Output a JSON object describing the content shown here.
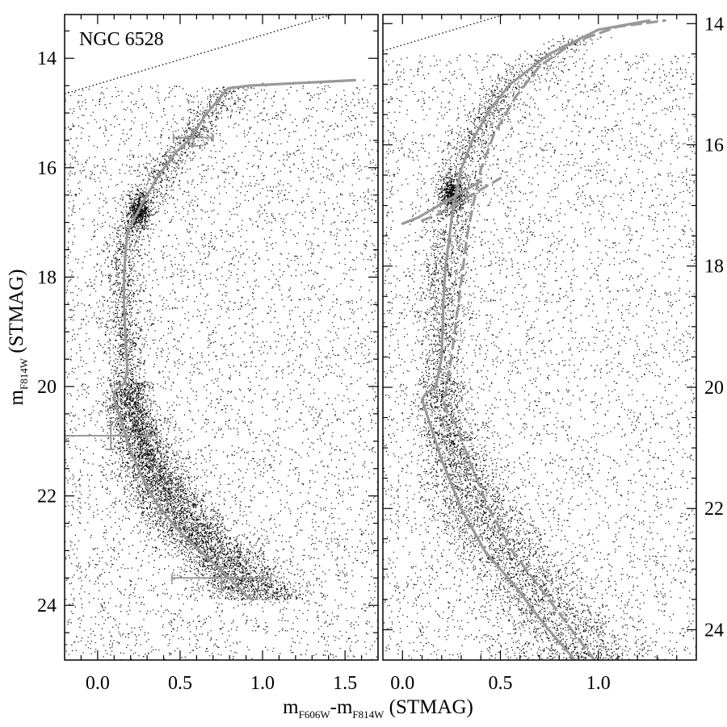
{
  "figure": {
    "label": "NGC 6528",
    "ylabel_main": "m",
    "ylabel_sub": "F814W",
    "ylabel_suffix": " (STMAG)",
    "xlabel_main_a": "m",
    "xlabel_sub_a": "F606W",
    "xlabel_dash": "-m",
    "xlabel_sub_b": "F814W",
    "xlabel_suffix": " (STMAG)"
  },
  "colors": {
    "curve": "#999999",
    "points": "#000000",
    "reference_line": "#000000"
  },
  "chart_data": [
    {
      "type": "scatter",
      "panel": "left",
      "title": "NGC 6528",
      "xlabel": "mF606W-mF814W (STMAG)",
      "ylabel": "mF814W (STMAG)",
      "xlim": [
        -0.2,
        1.7
      ],
      "ylim": [
        25.0,
        13.2
      ],
      "y_inverted": true,
      "xticks": [
        "0.0",
        "0.5",
        "1.0",
        "1.5"
      ],
      "yticks": [
        "14",
        "16",
        "18",
        "20",
        "22",
        "24"
      ],
      "grid": false,
      "series": [
        {
          "style": "solid-gray",
          "x": [
            0.94,
            0.91,
            0.78,
            0.62,
            0.48,
            0.36,
            0.26,
            0.19,
            0.14,
            0.11,
            0.1,
            0.1,
            0.12,
            0.16,
            0.18,
            0.17,
            0.16,
            0.16,
            0.17,
            0.18,
            0.21,
            0.27,
            0.38,
            0.48,
            0.57,
            0.65,
            0.79,
            0.92,
            1.24,
            1.56
          ],
          "y": [
            23.9,
            23.85,
            23.45,
            23.0,
            22.6,
            22.15,
            21.6,
            21.1,
            20.6,
            20.35,
            20.2,
            20.1,
            20.05,
            19.95,
            19.7,
            19.2,
            18.5,
            18.0,
            17.5,
            17.2,
            17.0,
            16.65,
            16.1,
            15.7,
            15.45,
            15.05,
            14.55,
            14.5,
            14.45,
            14.4
          ]
        }
      ],
      "error_bars": [
        {
          "x": 0.58,
          "y": 15.45,
          "xerr": 0.12,
          "yerr": 0.15
        },
        {
          "x": 0.08,
          "y": 20.9,
          "xerr": 0.28,
          "yerr": 0.25
        },
        {
          "x": 0.75,
          "y": 23.5,
          "xerr": 0.3,
          "yerr": 0.2
        }
      ],
      "reference_line": {
        "style": "dotted",
        "x": [
          -0.2,
          1.7
        ],
        "y": [
          14.65,
          12.95
        ]
      },
      "annotations": [
        "NGC 6528"
      ]
    },
    {
      "type": "scatter",
      "panel": "right",
      "xlabel": "mF606W-mF814W (STMAG)",
      "ylabel": "",
      "xlim": [
        -0.1,
        1.5
      ],
      "ylim": [
        24.5,
        13.85
      ],
      "y_inverted": true,
      "xticks": [
        "0.0",
        "0.5",
        "1.0"
      ],
      "yticks": [
        "14",
        "16",
        "18",
        "20",
        "22",
        "24"
      ],
      "grid": false,
      "series": [
        {
          "style": "solid-gray",
          "x": [
            0.88,
            0.72,
            0.58,
            0.42,
            0.3,
            0.2,
            0.14,
            0.11,
            0.1,
            0.12,
            0.17,
            0.2,
            0.21,
            0.22,
            0.24,
            0.26,
            0.3,
            0.36,
            0.45,
            0.55,
            0.75,
            1.0,
            1.26
          ],
          "y": [
            24.5,
            23.9,
            23.3,
            22.7,
            22.0,
            21.2,
            20.6,
            20.3,
            20.2,
            20.1,
            20.0,
            19.5,
            18.5,
            18.0,
            17.5,
            17.0,
            16.4,
            15.9,
            15.4,
            15.0,
            14.5,
            14.1,
            13.95
          ]
        },
        {
          "style": "dashed-gray",
          "x": [
            0.98,
            0.84,
            0.7,
            0.56,
            0.44,
            0.34,
            0.27,
            0.22,
            0.21,
            0.22,
            0.25,
            0.29,
            0.33,
            0.36,
            0.4,
            0.47,
            0.58,
            0.7,
            0.88,
            1.1,
            1.34
          ],
          "y": [
            24.5,
            23.9,
            23.3,
            22.7,
            22.0,
            21.2,
            20.6,
            20.35,
            20.2,
            20.1,
            19.5,
            18.5,
            17.5,
            17.0,
            16.4,
            15.8,
            15.2,
            14.7,
            14.3,
            14.05,
            13.95
          ]
        },
        {
          "style": "solid-gray",
          "x": [
            0.0,
            0.08,
            0.16,
            0.24,
            0.32,
            0.4
          ],
          "y": [
            17.3,
            17.2,
            17.05,
            16.9,
            16.75,
            16.6
          ]
        },
        {
          "style": "dashed-gray",
          "x": [
            0.1,
            0.18,
            0.26,
            0.34,
            0.42,
            0.5
          ],
          "y": [
            17.25,
            17.15,
            17.0,
            16.85,
            16.7,
            16.55
          ]
        }
      ],
      "reference_line": {
        "style": "dotted",
        "x": [
          -0.1,
          1.5
        ],
        "y": [
          14.45,
          12.9
        ]
      }
    }
  ]
}
